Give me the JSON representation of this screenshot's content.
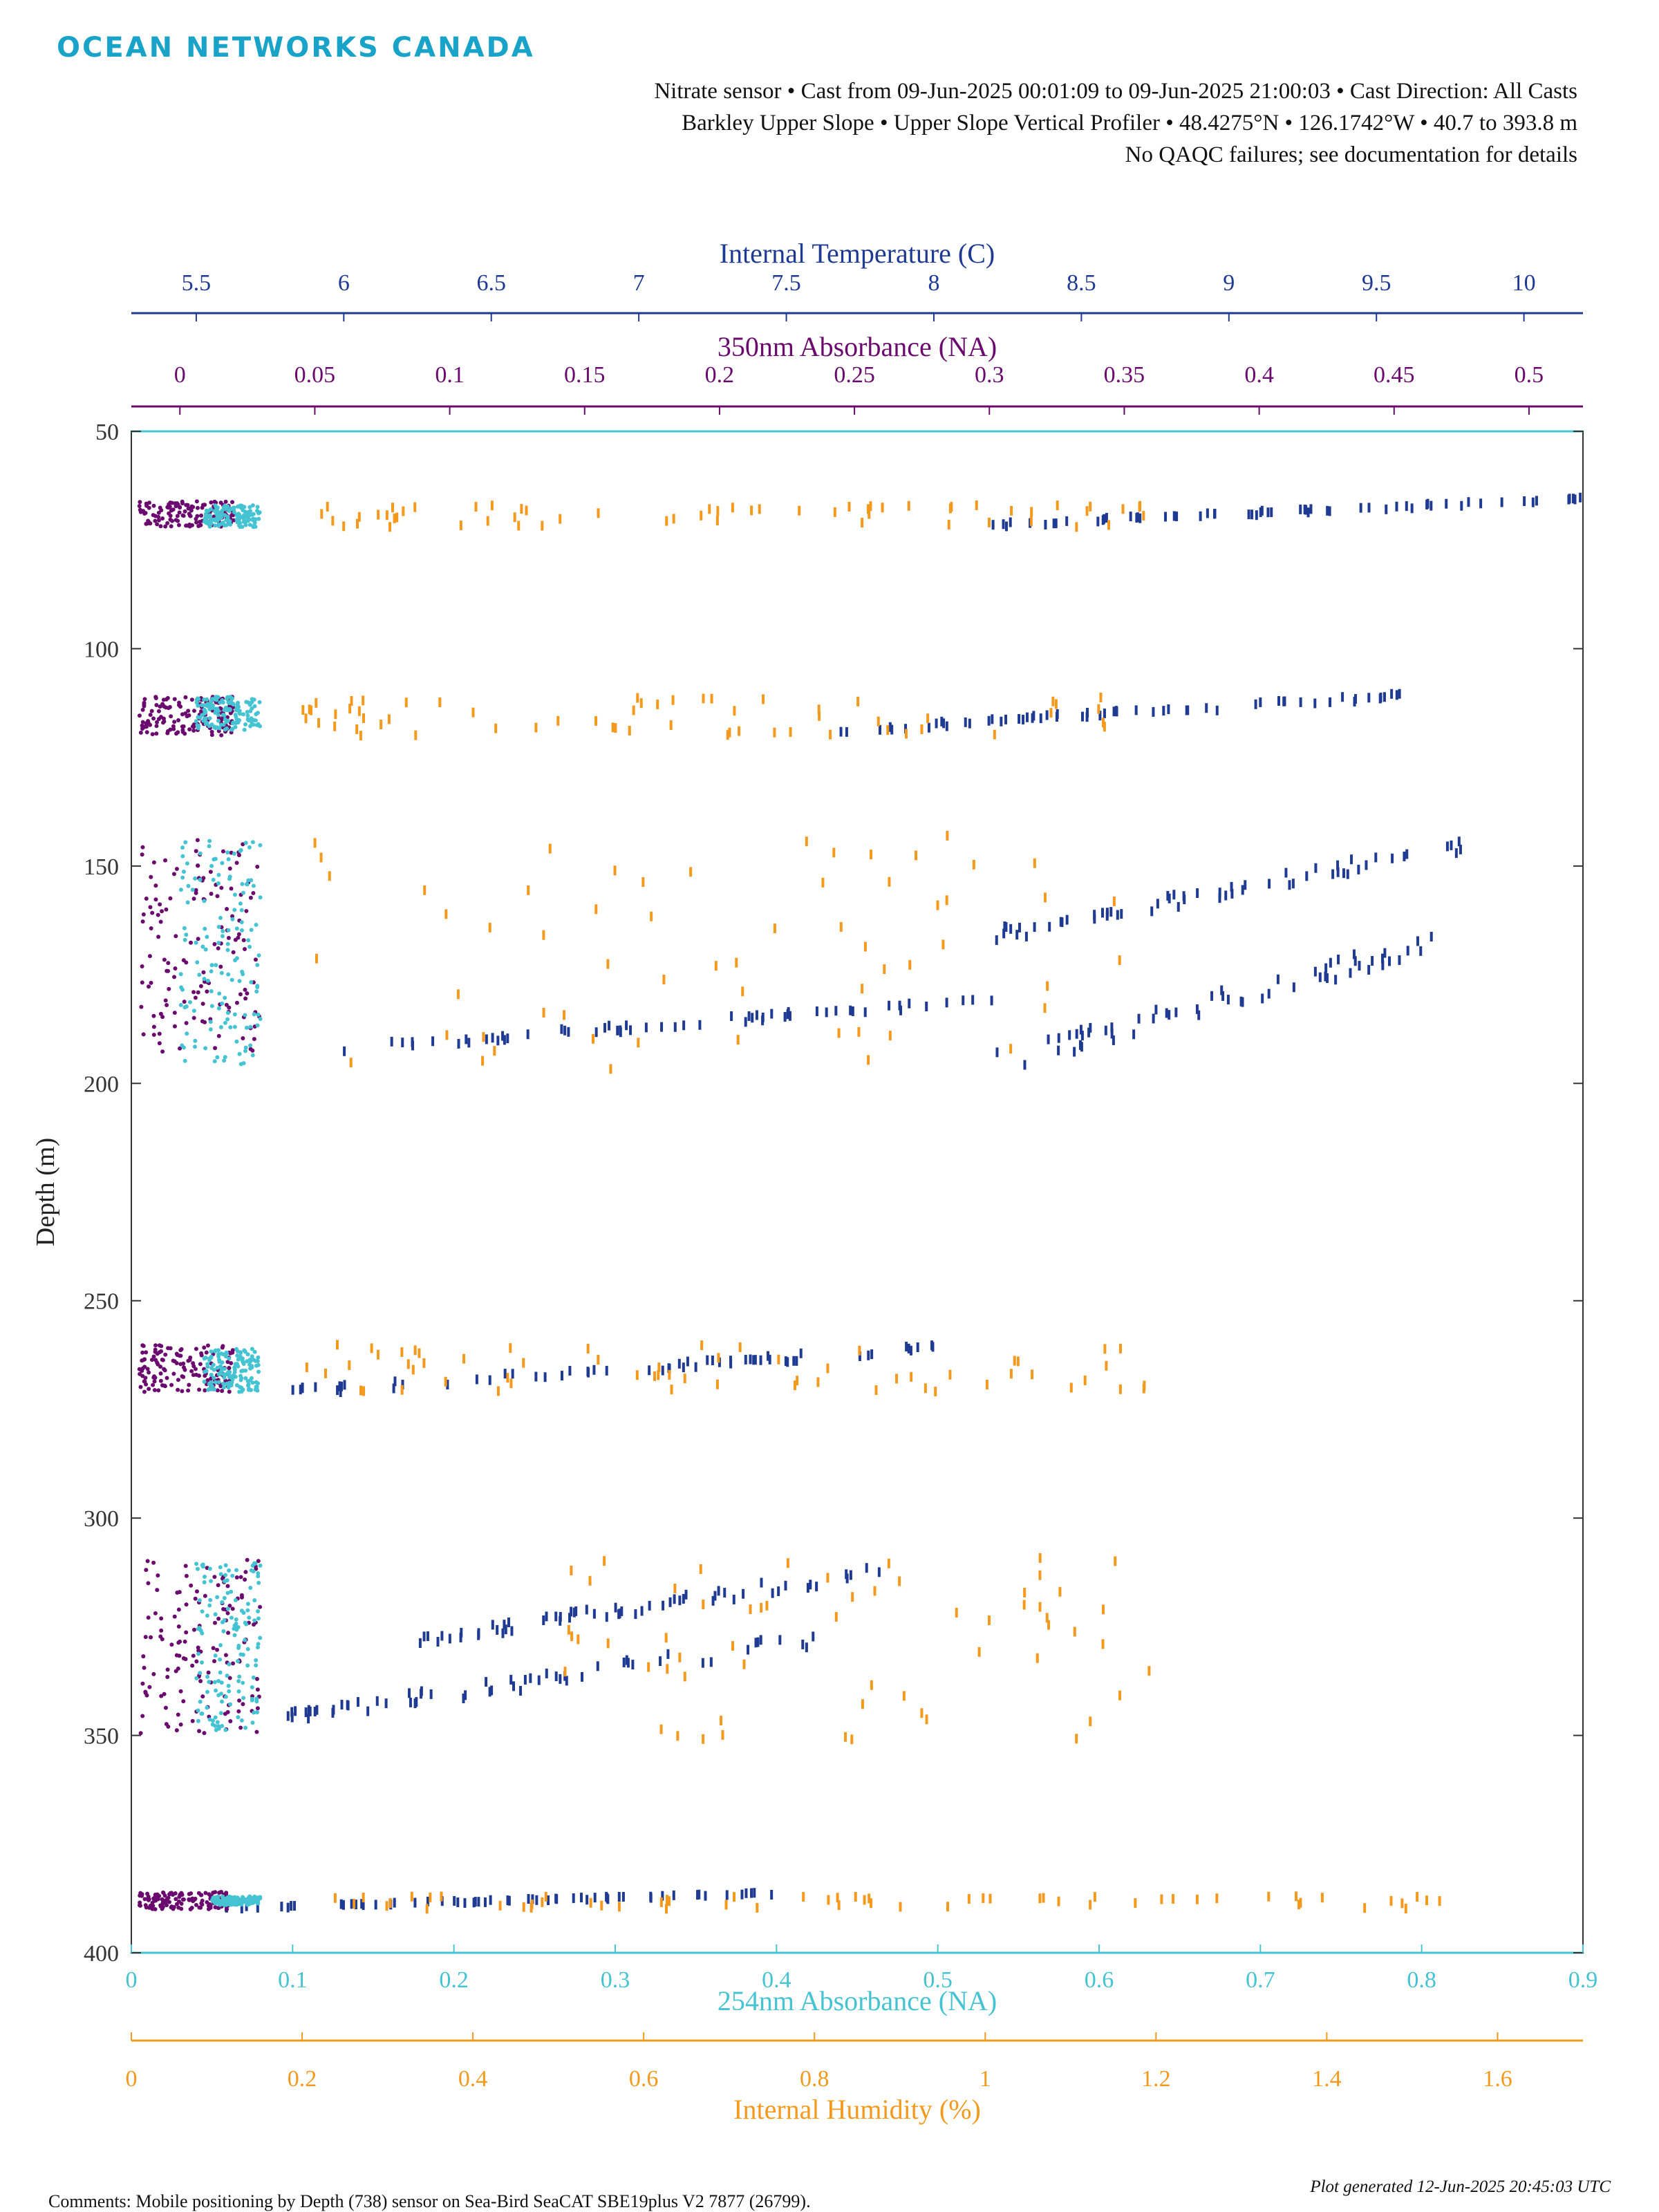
{
  "header": {
    "logo_text": "OCEAN NETWORKS CANADA",
    "line1": "Nitrate sensor • Cast from 09-Jun-2025 00:01:09 to 09-Jun-2025 21:00:03 • Cast Direction: All Casts",
    "line2": "Barkley Upper Slope • Upper Slope Vertical Profiler • 48.4275°N • 126.1742°W • 40.7 to 393.8 m",
    "line3": "No QAQC failures; see documentation for details"
  },
  "footer": {
    "generated": "Plot generated 12-Jun-2025 20:45:03 UTC",
    "comments": "Comments: Mobile positioning by Depth (738) sensor on Sea-Bird SeaCAT SBE19plus V2 7877 (26799)."
  },
  "chart_data": {
    "type": "scatter",
    "y_axis": {
      "label": "Depth (m)",
      "range": [
        50,
        400
      ],
      "reversed": true,
      "ticks": [
        "50",
        "100",
        "150",
        "200",
        "250",
        "300",
        "350",
        "400"
      ]
    },
    "axes": [
      {
        "key": "temperature",
        "label": "Internal Temperature (C)",
        "position": "top-1",
        "color": "#1f3a93",
        "range": [
          5.28,
          10.2
        ],
        "ticks": [
          "5.5",
          "6",
          "6.5",
          "7",
          "7.5",
          "8",
          "8.5",
          "9",
          "9.5",
          "10"
        ]
      },
      {
        "key": "abs350",
        "label": "350nm Absorbance (NA)",
        "position": "top-2",
        "color": "#6a0a6e",
        "range": [
          -0.018,
          0.52
        ],
        "ticks": [
          "0",
          "0.05",
          "0.1",
          "0.15",
          "0.2",
          "0.25",
          "0.3",
          "0.35",
          "0.4",
          "0.45",
          "0.5"
        ]
      },
      {
        "key": "abs254",
        "label": "254nm Absorbance (NA)",
        "position": "bottom-1",
        "color": "#45c3d2",
        "range": [
          0,
          0.9
        ],
        "ticks": [
          "0",
          "0.1",
          "0.2",
          "0.3",
          "0.4",
          "0.5",
          "0.6",
          "0.7",
          "0.8",
          "0.9"
        ]
      },
      {
        "key": "humidity",
        "label": "Internal Humidity (%)",
        "position": "bottom-2",
        "color": "#f39a1e",
        "range": [
          0,
          1.7
        ],
        "ticks": [
          "0",
          "0.2",
          "0.4",
          "0.6",
          "0.8",
          "1",
          "1.2",
          "1.4",
          "1.6"
        ]
      }
    ],
    "series": [
      {
        "name": "Internal Temperature (C)",
        "axis": "temperature",
        "color": "#1f3a93",
        "clusters": [
          {
            "depth": [
              65,
              72
            ],
            "x": [
              8.2,
              10.2
            ]
          },
          {
            "depth": [
              110,
              120
            ],
            "x": [
              7.6,
              9.6
            ]
          },
          {
            "depth": [
              143,
              168
            ],
            "x": [
              8.2,
              9.8
            ]
          },
          {
            "depth": [
              165,
              198
            ],
            "x": [
              8.2,
              9.7
            ]
          },
          {
            "depth": [
              180,
              193
            ],
            "x": [
              6.0,
              8.2
            ]
          },
          {
            "depth": [
              260,
              272
            ],
            "x": [
              5.8,
              8.0
            ]
          },
          {
            "depth": [
              310,
              330
            ],
            "x": [
              6.2,
              7.9
            ]
          },
          {
            "depth": [
              325,
              348
            ],
            "x": [
              5.8,
              7.7
            ]
          },
          {
            "depth": [
              386,
              390
            ],
            "x": [
              5.6,
              7.5
            ]
          }
        ]
      },
      {
        "name": "350nm Absorbance (NA)",
        "axis": "abs350",
        "color": "#6a0a6e",
        "clusters": [
          {
            "depth": [
              66,
              72
            ],
            "x": [
              -0.015,
              0.02
            ]
          },
          {
            "depth": [
              111,
              120
            ],
            "x": [
              -0.015,
              0.02
            ]
          },
          {
            "depth": [
              144,
              193
            ],
            "x": [
              -0.015,
              0.03
            ]
          },
          {
            "depth": [
              260,
              271
            ],
            "x": [
              -0.015,
              0.02
            ]
          },
          {
            "depth": [
              309,
              350
            ],
            "x": [
              -0.015,
              0.03
            ]
          },
          {
            "depth": [
              386,
              390
            ],
            "x": [
              -0.015,
              0.02
            ]
          }
        ]
      },
      {
        "name": "254nm Absorbance (NA)",
        "axis": "abs254",
        "color": "#45c3d2",
        "clusters": [
          {
            "depth": [
              67,
              72
            ],
            "x": [
              0.045,
              0.08
            ]
          },
          {
            "depth": [
              111,
              119
            ],
            "x": [
              0.04,
              0.08
            ]
          },
          {
            "depth": [
              144,
              196
            ],
            "x": [
              0.03,
              0.08
            ]
          },
          {
            "depth": [
              261,
              271
            ],
            "x": [
              0.045,
              0.08
            ]
          },
          {
            "depth": [
              310,
              349
            ],
            "x": [
              0.04,
              0.08
            ]
          },
          {
            "depth": [
              387,
              389
            ],
            "x": [
              0.05,
              0.08
            ]
          }
        ]
      },
      {
        "name": "Internal Humidity (%)",
        "axis": "humidity",
        "color": "#f39a1e",
        "clusters": [
          {
            "depth": [
              67,
              72
            ],
            "x": [
              0.2,
              1.2
            ]
          },
          {
            "depth": [
              111,
              120
            ],
            "x": [
              0.2,
              1.2
            ]
          },
          {
            "depth": [
              143,
              197
            ],
            "x": [
              0.2,
              1.2
            ]
          },
          {
            "depth": [
              260,
              271
            ],
            "x": [
              0.2,
              1.2
            ]
          },
          {
            "depth": [
              309,
              351
            ],
            "x": [
              0.5,
              1.2
            ]
          },
          {
            "depth": [
              387,
              390
            ],
            "x": [
              0.2,
              1.6
            ]
          }
        ]
      }
    ],
    "grid": false
  }
}
